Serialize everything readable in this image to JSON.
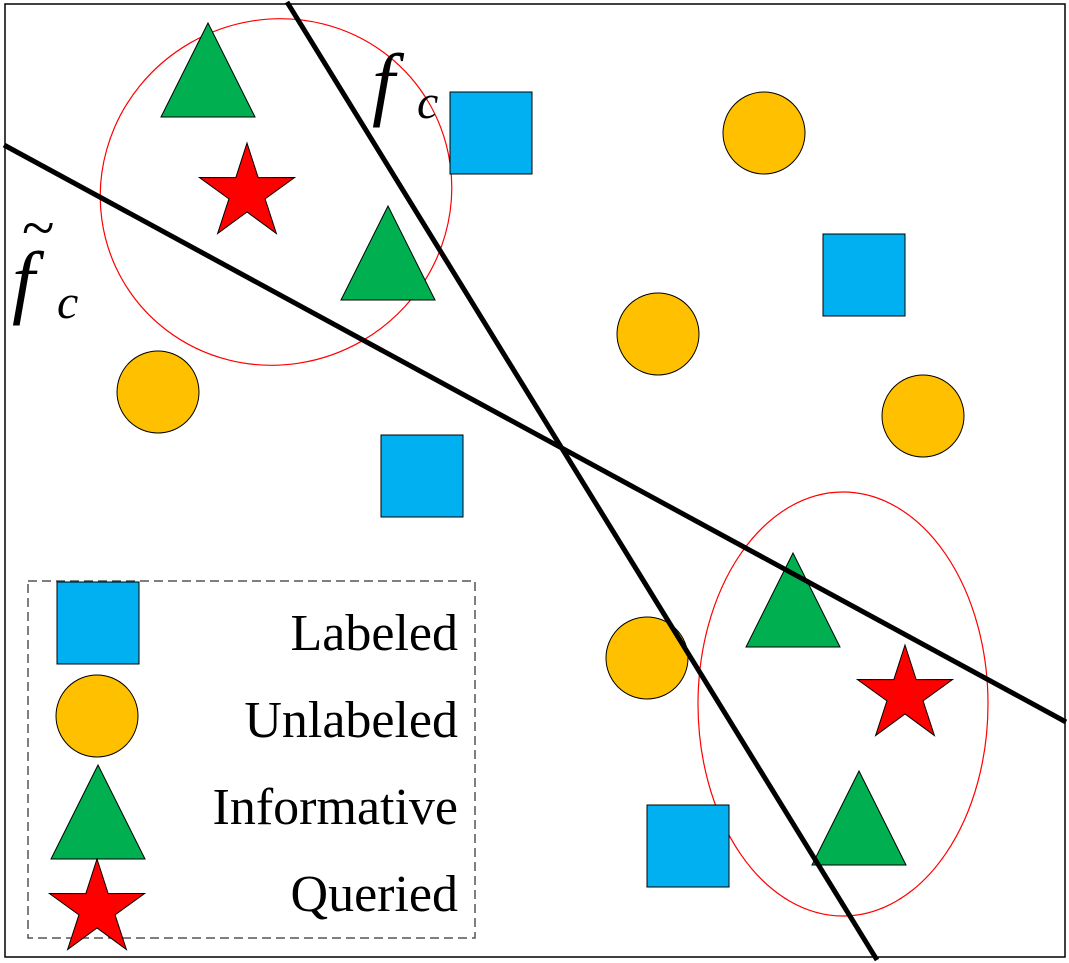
{
  "colors": {
    "labeled": "#00B0F0",
    "unlabeled": "#FFC000",
    "informative": "#00B050",
    "queried": "#FF0000",
    "line": "#000000",
    "ellipse": "#FF0000",
    "frame": "#000000",
    "legend_border": "#555555"
  },
  "line_labels": {
    "f_c": {
      "base": "f",
      "sub": "c"
    },
    "f_tilde_c": {
      "base": "f",
      "sub": "c",
      "tilde": "~"
    }
  },
  "legend": {
    "items": [
      {
        "label": "Labeled",
        "icon": "square-icon"
      },
      {
        "label": "Unlabeled",
        "icon": "circle-icon"
      },
      {
        "label": "Informative",
        "icon": "triangle-icon"
      },
      {
        "label": "Queried",
        "icon": "star-icon"
      }
    ]
  }
}
